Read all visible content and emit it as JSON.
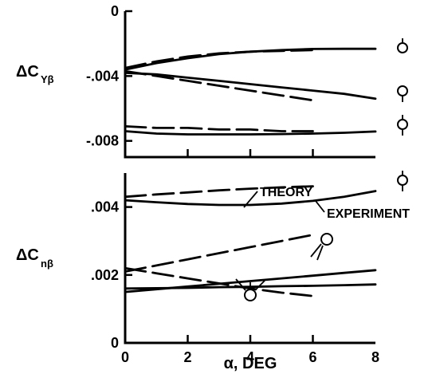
{
  "chart_data": [
    {
      "type": "line",
      "panel": "top",
      "ylabel_main": "ΔC",
      "ylabel_sub": "Yβ",
      "xlim": [
        0,
        8
      ],
      "ylim": [
        -0.009,
        0
      ],
      "y_ticks": [
        {
          "value": 0,
          "label": "0"
        },
        {
          "value": -0.004,
          "label": "-.004"
        },
        {
          "value": -0.008,
          "label": "-.008"
        }
      ],
      "series": [
        {
          "style": "solid",
          "x": [
            0,
            1,
            2,
            3,
            4,
            5,
            6,
            7,
            8
          ],
          "y": [
            -0.0036,
            -0.0032,
            -0.0029,
            -0.00265,
            -0.0025,
            -0.0024,
            -0.00233,
            -0.00232,
            -0.00232
          ]
        },
        {
          "style": "dashed",
          "x": [
            0,
            1,
            2,
            3,
            4,
            5,
            6
          ],
          "y": [
            -0.0035,
            -0.0031,
            -0.0028,
            -0.0026,
            -0.0025,
            -0.00245,
            -0.0024
          ]
        },
        {
          "style": "solid",
          "x": [
            0,
            1,
            2,
            3,
            4,
            5,
            6,
            7,
            8
          ],
          "y": [
            -0.0038,
            -0.0039,
            -0.0041,
            -0.0043,
            -0.0045,
            -0.0047,
            -0.0049,
            -0.0051,
            -0.0054
          ]
        },
        {
          "style": "dashed",
          "x": [
            0,
            1,
            2,
            3,
            4,
            5,
            6
          ],
          "y": [
            -0.0037,
            -0.004,
            -0.0043,
            -0.0046,
            -0.0049,
            -0.0052,
            -0.0055
          ]
        },
        {
          "style": "dashed",
          "x": [
            0,
            1,
            2,
            3,
            4,
            5,
            6
          ],
          "y": [
            -0.0071,
            -0.0072,
            -0.0072,
            -0.0073,
            -0.0073,
            -0.0074,
            -0.0074
          ]
        },
        {
          "style": "solid",
          "x": [
            0,
            1,
            2,
            3,
            4,
            5,
            6,
            7,
            8
          ],
          "y": [
            -0.0074,
            -0.00755,
            -0.0076,
            -0.0076,
            -0.0076,
            -0.00758,
            -0.00755,
            -0.0075,
            -0.00742
          ]
        }
      ]
    },
    {
      "type": "line",
      "panel": "bottom",
      "ylabel_main": "ΔC",
      "ylabel_sub": "nβ",
      "xlabel": "α, DEG",
      "xlim": [
        0,
        8
      ],
      "ylim": [
        0,
        0.005
      ],
      "x_ticks": [
        {
          "value": 0,
          "label": "0"
        },
        {
          "value": 2,
          "label": "2"
        },
        {
          "value": 4,
          "label": "4"
        },
        {
          "value": 6,
          "label": "6"
        },
        {
          "value": 8,
          "label": "8"
        }
      ],
      "y_ticks": [
        {
          "value": 0,
          "label": "0"
        },
        {
          "value": 0.002,
          "label": ".002"
        },
        {
          "value": 0.004,
          "label": ".004"
        }
      ],
      "annotations": [
        {
          "text": "THEORY",
          "for": "dashed"
        },
        {
          "text": "EXPERIMENT",
          "for": "solid"
        }
      ],
      "series": [
        {
          "style": "dashed",
          "x": [
            0,
            1,
            2,
            3,
            4,
            5,
            6
          ],
          "y": [
            0.0043,
            0.00437,
            0.00443,
            0.00449,
            0.00454,
            0.00458,
            0.00461
          ]
        },
        {
          "style": "solid",
          "x": [
            0,
            1,
            2,
            3,
            4,
            5,
            6,
            7,
            8
          ],
          "y": [
            0.0042,
            0.00414,
            0.00409,
            0.00406,
            0.00406,
            0.0041,
            0.00418,
            0.0043,
            0.00447
          ]
        },
        {
          "style": "dashed",
          "x": [
            0,
            1,
            2,
            3,
            4,
            5,
            6
          ],
          "y": [
            0.0021,
            0.00228,
            0.00246,
            0.00264,
            0.00282,
            0.003,
            0.00318
          ]
        },
        {
          "style": "dashed",
          "x": [
            0,
            1,
            2,
            3,
            4,
            5,
            6
          ],
          "y": [
            0.0022,
            0.00205,
            0.0019,
            0.00175,
            0.0016,
            0.00148,
            0.00138
          ]
        },
        {
          "style": "solid",
          "x": [
            0,
            1,
            2,
            3,
            4,
            5,
            6,
            7,
            8
          ],
          "y": [
            0.0015,
            0.00158,
            0.00166,
            0.00174,
            0.00182,
            0.0019,
            0.00198,
            0.00206,
            0.00214
          ]
        },
        {
          "style": "solid",
          "x": [
            0,
            1,
            2,
            3,
            4,
            5,
            6,
            7,
            8
          ],
          "y": [
            0.0016,
            0.00161,
            0.00162,
            0.00164,
            0.00165,
            0.00167,
            0.00168,
            0.0017,
            0.00172
          ]
        }
      ]
    }
  ]
}
